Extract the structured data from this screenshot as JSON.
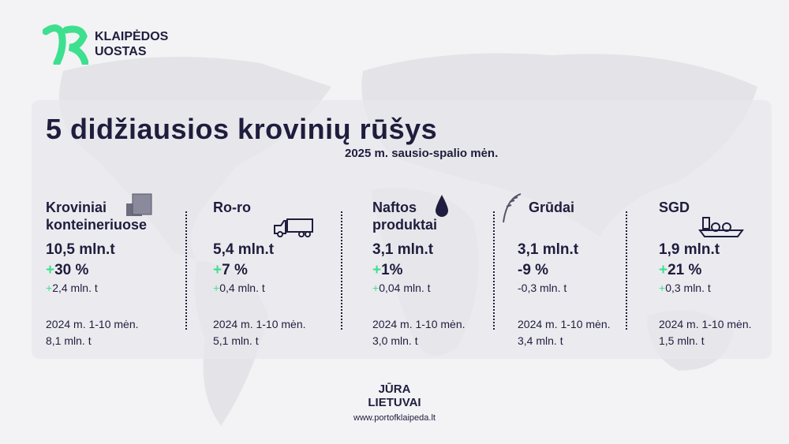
{
  "logo": {
    "line1": "KLAIPĖDOS",
    "line2": "UOSTAS"
  },
  "title": "5 didžiausios krovinių rūšys",
  "subtitle": "2025 m. sausio-spalio mėn.",
  "colors": {
    "navy": "#1f1d3d",
    "green": "#3ee08f"
  },
  "cargo": [
    {
      "name": "Kroviniai konteineriuose",
      "icon": "containers-icon",
      "value": "10,5 mln.t",
      "pct_sign": "+",
      "pct": "30 %",
      "delta_sign": "+",
      "delta": "2,4 mln. t",
      "prev_label": "2024 m. 1-10 mėn.",
      "prev_value": "8,1 mln. t"
    },
    {
      "name": "Ro-ro",
      "icon": "truck-icon",
      "value": "5,4 mln.t",
      "pct_sign": "+",
      "pct": "7 %",
      "delta_sign": "+",
      "delta": "0,4 mln. t",
      "prev_label": "2024 m. 1-10 mėn.",
      "prev_value": "5,1 mln. t"
    },
    {
      "name": "Naftos produktai",
      "icon": "oil-drop-icon",
      "value": "3,1 mln.t",
      "pct_sign": "+",
      "pct": "1%",
      "delta_sign": "+",
      "delta": "0,04 mln. t",
      "prev_label": "2024 m. 1-10 mėn.",
      "prev_value": "3,0 mln. t"
    },
    {
      "name": "Grūdai",
      "icon": "wheat-icon",
      "value": "3,1 mln.t",
      "pct_sign": "",
      "pct": "-9 %",
      "delta_sign": "",
      "delta": "-0,3 mln. t",
      "prev_label": "2024 m. 1-10 mėn.",
      "prev_value": "3,4 mln. t"
    },
    {
      "name": "SGD",
      "icon": "lng-ship-icon",
      "value": "1,9 mln.t",
      "pct_sign": "+",
      "pct": "21 %",
      "delta_sign": "+",
      "delta": "0,3 mln. t",
      "prev_label": "2024 m. 1-10 mėn.",
      "prev_value": "1,5 mln. t"
    }
  ],
  "footer": {
    "line1": "JŪRA",
    "line2": "LIETUVAI",
    "url": "www.portofklaipeda.lt"
  }
}
